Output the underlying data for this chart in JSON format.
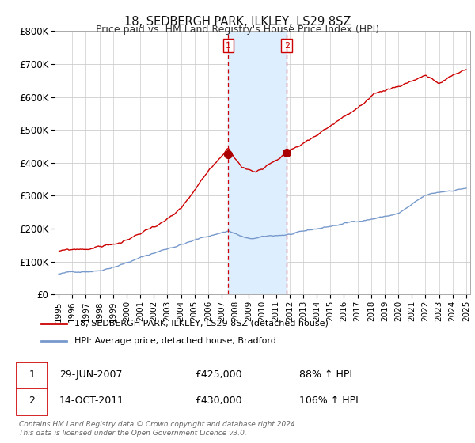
{
  "title": "18, SEDBERGH PARK, ILKLEY, LS29 8SZ",
  "subtitle": "Price paid vs. HM Land Registry's House Price Index (HPI)",
  "ylim": [
    0,
    800000
  ],
  "yticks": [
    0,
    100000,
    200000,
    300000,
    400000,
    500000,
    600000,
    700000,
    800000
  ],
  "ytick_labels": [
    "£0",
    "£100K",
    "£200K",
    "£300K",
    "£400K",
    "£500K",
    "£600K",
    "£700K",
    "£800K"
  ],
  "xlim_min": 1994.7,
  "xlim_max": 2025.3,
  "background_color": "#ffffff",
  "grid_color": "#cccccc",
  "sale1_t": 2007.49,
  "sale1_price": 425000,
  "sale2_t": 2011.79,
  "sale2_price": 430000,
  "shade_color": "#ddeeff",
  "red_line_color": "#cc0000",
  "blue_line_color": "#7799cc",
  "sale_dot_color": "#aa0000",
  "vline_color": "#cc0000",
  "legend1_label": "18, SEDBERGH PARK, ILKLEY, LS29 8SZ (detached house)",
  "legend2_label": "HPI: Average price, detached house, Bradford",
  "ann1": [
    "1",
    "29-JUN-2007",
    "£425,000",
    "88% ↑ HPI"
  ],
  "ann2": [
    "2",
    "14-OCT-2011",
    "£430,000",
    "106% ↑ HPI"
  ],
  "footer": "Contains HM Land Registry data © Crown copyright and database right 2024.\nThis data is licensed under the Open Government Licence v3.0."
}
